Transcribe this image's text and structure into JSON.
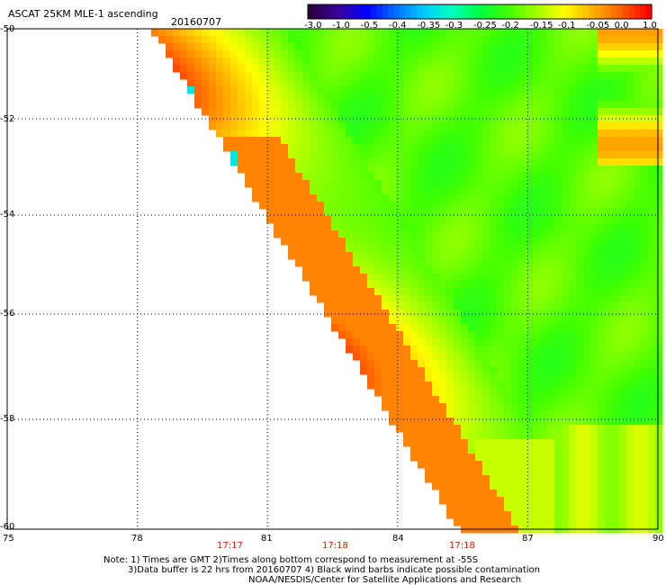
{
  "header": {
    "title": "ASCAT 25KM MLE-1 ascending",
    "date": "20160707"
  },
  "colorbar": {
    "labels": [
      "-3.0",
      "-1.0",
      "-0.5",
      "-0.4",
      "-0.35",
      "-0.3",
      "-0.25",
      "-0.2",
      "-0.15",
      "-0.1",
      "-0.05",
      "0.0",
      "1.0"
    ],
    "colors": [
      "#2a0040",
      "#3a00a0",
      "#0000ff",
      "#0070ff",
      "#00c8ff",
      "#00ffc0",
      "#00ff40",
      "#40ff00",
      "#a0ff00",
      "#ffff00",
      "#ffb000",
      "#ff6000",
      "#ff0000"
    ]
  },
  "map": {
    "lat_labels": [
      "-50",
      "-52",
      "-54",
      "-56",
      "-58",
      "-60"
    ],
    "lon_labels": [
      "75",
      "78",
      "81",
      "84",
      "87",
      "90"
    ],
    "time_labels": [
      "17:17",
      "17:18",
      "17:18"
    ],
    "lon_range": [
      75,
      90
    ],
    "lat_range": [
      -60,
      -50
    ]
  },
  "notes": {
    "line1": "Note: 1) Times are GMT 2)Times along bottom correspond to measurement at -55S",
    "line2": "3)Data buffer is 22 hrs from 20160707 4) Black wind barbs indicate possible contamination",
    "line3": "NOAA/NESDIS/Center for Satellite Applications and Research"
  }
}
